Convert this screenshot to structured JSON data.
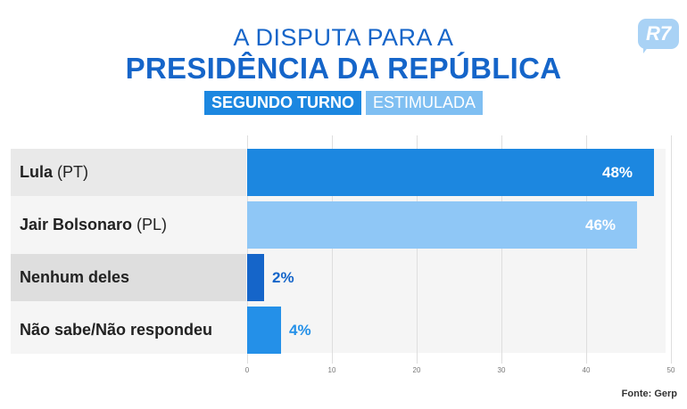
{
  "header": {
    "title_line1": "A DISPUTA PARA A",
    "title_line2": "PRESIDÊNCIA DA REPÚBLICA",
    "tag_round": "SEGUNDO TURNO",
    "tag_type": "ESTIMULADA",
    "logo": "R7"
  },
  "colors": {
    "brand_blue": "#1565c9",
    "bar_lula": "#1c87e0",
    "bar_bolsonaro": "#8fc7f6",
    "bar_nenhum": "#1565c9",
    "bar_nao_sabe": "#2490e8"
  },
  "chart_data": {
    "type": "bar",
    "orientation": "horizontal",
    "categories": [
      {
        "name": "Lula",
        "party": "(PT)"
      },
      {
        "name": "Jair Bolsonaro",
        "party": "(PL)"
      },
      {
        "name": "Nenhum deles",
        "party": ""
      },
      {
        "name": "Não sabe/Não respondeu",
        "party": ""
      }
    ],
    "values": [
      48,
      46,
      2,
      4
    ],
    "value_labels": [
      "48%",
      "46%",
      "2%",
      "4%"
    ],
    "xlim": [
      0,
      50
    ],
    "xticks": [
      "0",
      "10",
      "20",
      "30",
      "40",
      "50"
    ],
    "grid": true
  },
  "footer": {
    "source": "Fonte: Gerp"
  }
}
